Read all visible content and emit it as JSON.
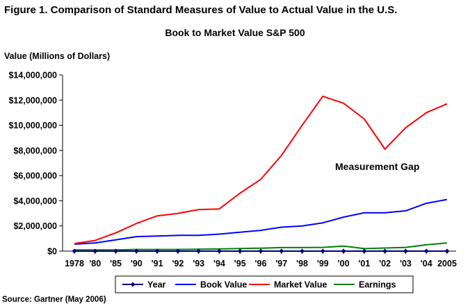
{
  "figure_title": "Figure 1. Comparison of Standard Measures of Value to Actual Value in the U.S.",
  "source": "Source: Gartner (May 2006)",
  "chart_data": {
    "type": "line",
    "title": "Book to Market Value S&P 500",
    "ylabel": "Value (Millions of Dollars)",
    "xlabel": "",
    "categories": [
      "1978",
      "'80",
      "'85",
      "'90",
      "'91",
      "'92",
      "'93",
      "'94",
      "'95",
      "'96",
      "'97",
      "'98",
      "'99",
      "'00",
      "'01",
      "'02",
      "'03",
      "'04",
      "2005"
    ],
    "ylim": [
      0,
      14000000
    ],
    "yticks": [
      0,
      2000000,
      4000000,
      6000000,
      8000000,
      10000000,
      12000000,
      14000000
    ],
    "ytick_labels": [
      "$0",
      "$2,000,000",
      "$4,000,000",
      "$6,000,000",
      "$8,000,000",
      "$10,000,000",
      "$12,000,000",
      "$14,000,000"
    ],
    "grid": false,
    "legend_position": "bottom",
    "annotation": "Measurement Gap",
    "series": [
      {
        "name": "Year",
        "color": "#000080",
        "marker": "diamond",
        "values": [
          0,
          0,
          0,
          0,
          0,
          0,
          0,
          0,
          0,
          0,
          0,
          0,
          0,
          0,
          0,
          0,
          0,
          0,
          0
        ]
      },
      {
        "name": "Book Value",
        "color": "#0000ff",
        "marker": "none",
        "values": [
          550000,
          650000,
          900000,
          1150000,
          1200000,
          1250000,
          1250000,
          1350000,
          1500000,
          1650000,
          1900000,
          2000000,
          2250000,
          2700000,
          3050000,
          3050000,
          3200000,
          3800000,
          4100000
        ]
      },
      {
        "name": "Market Value",
        "color": "#ff0000",
        "marker": "none",
        "values": [
          600000,
          850000,
          1450000,
          2200000,
          2800000,
          3000000,
          3300000,
          3350000,
          4600000,
          5700000,
          7600000,
          10000000,
          12300000,
          11750000,
          10500000,
          8100000,
          9800000,
          11000000,
          11700000
        ]
      },
      {
        "name": "Earnings",
        "color": "#008000",
        "marker": "none",
        "values": [
          100000,
          100000,
          100000,
          130000,
          130000,
          130000,
          150000,
          170000,
          210000,
          230000,
          280000,
          280000,
          300000,
          400000,
          200000,
          250000,
          300000,
          500000,
          650000
        ]
      }
    ]
  }
}
